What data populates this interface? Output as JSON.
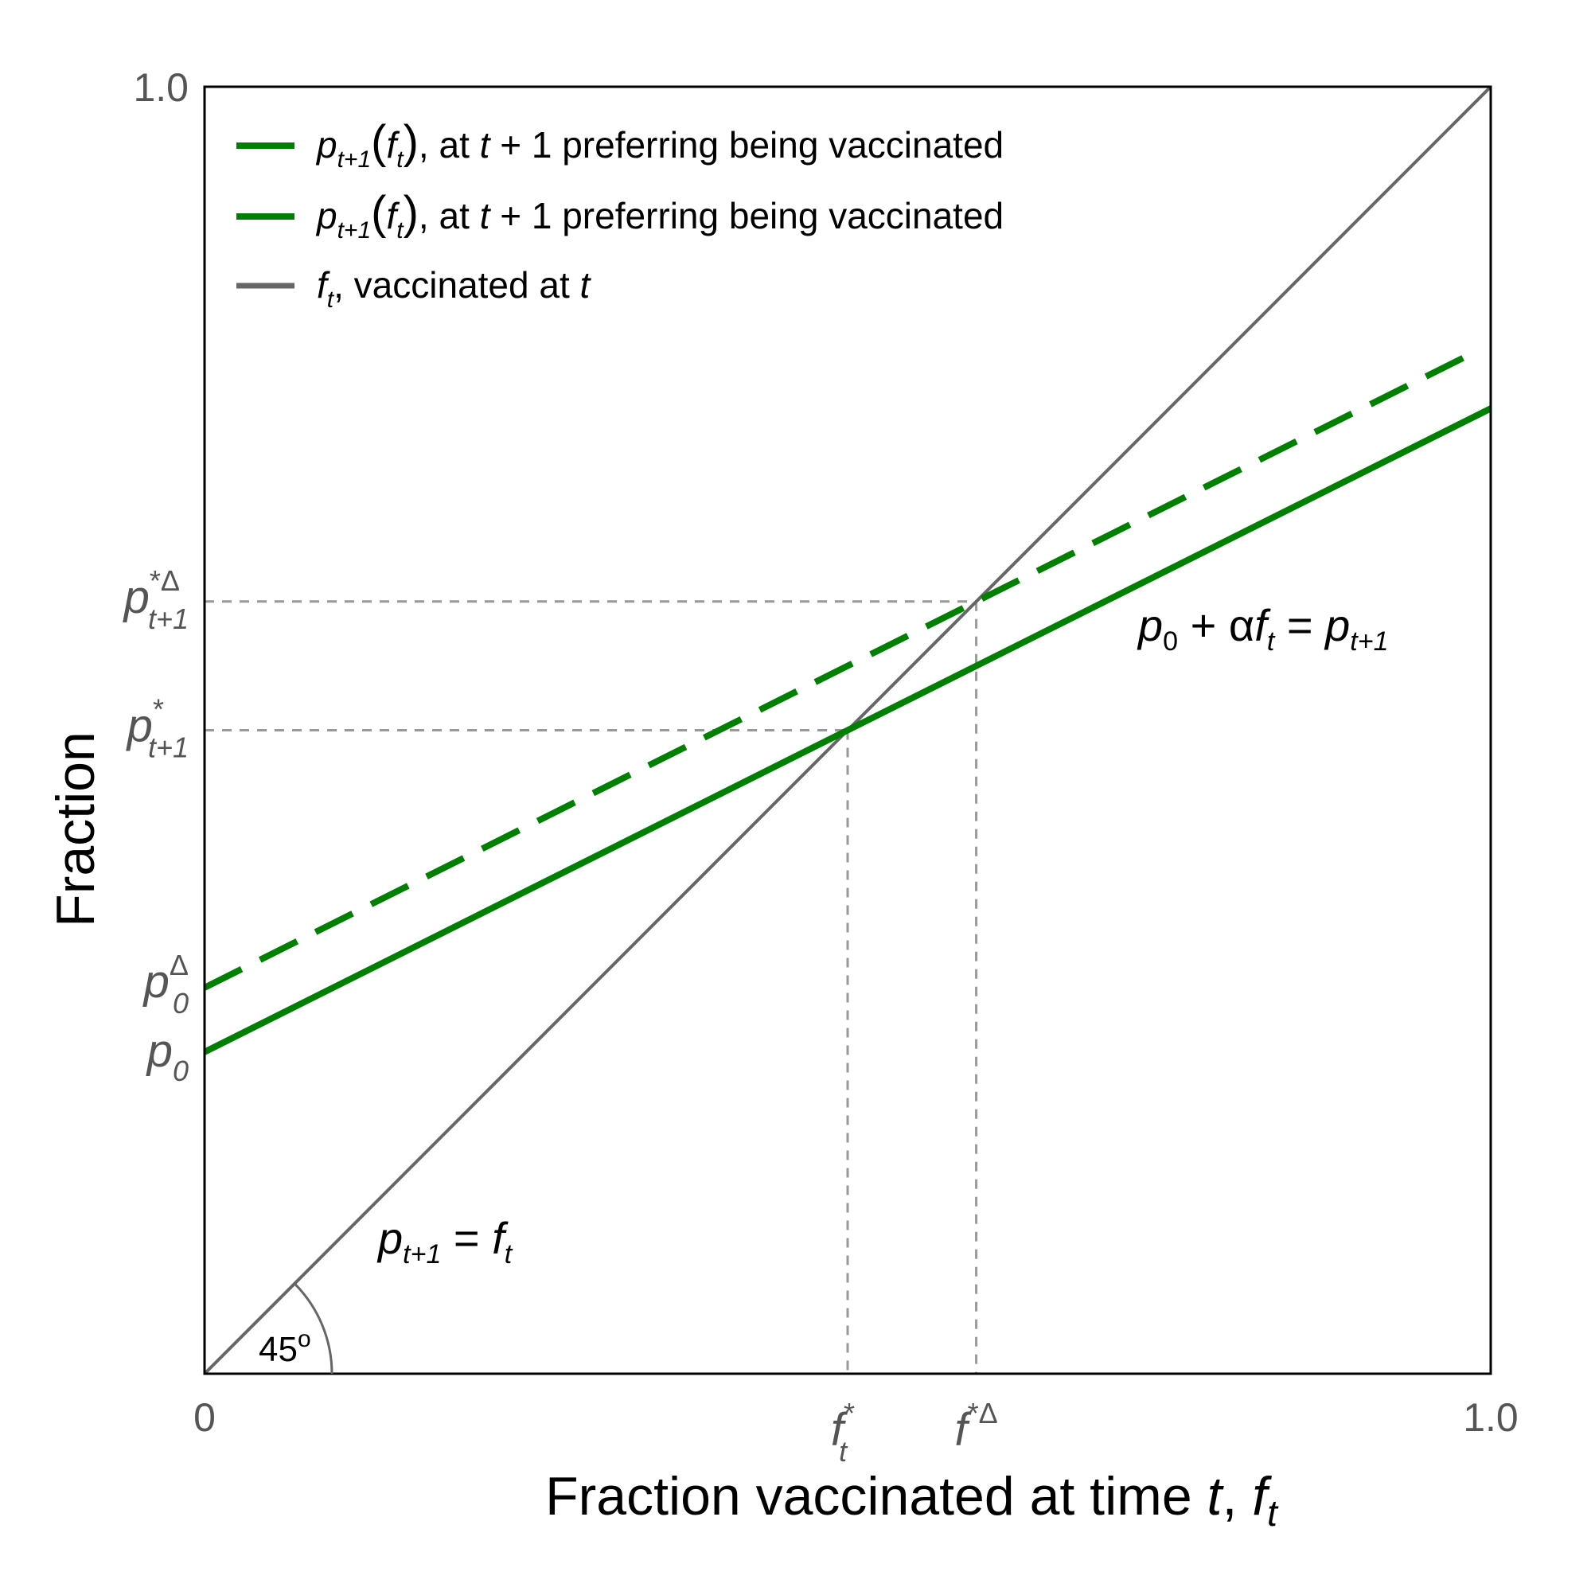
{
  "chart_data": {
    "type": "line",
    "xlabel": {
      "text": "Fraction vaccinated at time ",
      "t": "t",
      "sep": ", ",
      "f": "f",
      "sub": "t"
    },
    "ylabel": "Fraction",
    "xlim": [
      0,
      1.0
    ],
    "ylim": [
      0,
      1.0
    ],
    "x_ticks": [
      {
        "value": 0,
        "label": "0"
      },
      {
        "value": 1.0,
        "label": "1.0"
      }
    ],
    "y_ticks": [
      {
        "value": 1.0,
        "label": "1.0"
      }
    ],
    "grid": false,
    "legend_position": "top-left",
    "series": [
      {
        "name": "p_{t+1}(f_t), at t + 1 preferring being vaccinated",
        "color": "#008000",
        "style": "solid",
        "x": [
          0,
          1.0
        ],
        "y": [
          0.25,
          0.75
        ]
      },
      {
        "name": "p_{t+1}(f_t), at t + 1 preferring being vaccinated",
        "color": "#008000",
        "style": "dashed",
        "x": [
          0,
          0.98
        ],
        "y": [
          0.3,
          0.79
        ]
      },
      {
        "name": "f_t, vaccinated at t",
        "color": "#666666",
        "style": "solid",
        "x": [
          0,
          1.0
        ],
        "y": [
          0,
          1.0
        ]
      }
    ],
    "reference_points": {
      "fixed_point": {
        "x": 0.5,
        "y": 0.5
      },
      "shifted_fixed_point": {
        "x": 0.6,
        "y": 0.6
      }
    },
    "special_ticks": {
      "p0": {
        "y": 0.25,
        "base": "p",
        "sub": "0",
        "sup": ""
      },
      "p0_delta": {
        "y": 0.3,
        "base": "p",
        "sub": "0",
        "sup": "Δ"
      },
      "p_star": {
        "y": 0.5,
        "base": "p",
        "sub": "t+1",
        "sup": "*"
      },
      "p_star_delta": {
        "y": 0.6,
        "base": "p",
        "sub": "t+1",
        "sup": "*Δ"
      },
      "f_star": {
        "x": 0.5,
        "base": "f",
        "sub": "t",
        "sup": "*"
      },
      "f_star_delta": {
        "x": 0.6,
        "base": "f",
        "sub": "",
        "sup": "*Δ"
      }
    },
    "legend": [
      {
        "p": "p",
        "psub": "t+1",
        "open": "(",
        "f": "f",
        "fsub": "t",
        "close": ")",
        "pre": ", at ",
        "t": "t",
        "post": " + 1 preferring being vaccinated"
      },
      {
        "p": "p",
        "psub": "t+1",
        "open": "(",
        "f": "f",
        "fsub": "t",
        "close": ")",
        "pre": ", at ",
        "t": "t",
        "post": " + 1 preferring being vaccinated"
      },
      {
        "f": "f",
        "fsub": "t",
        "pre": ", vaccinated at ",
        "t": "t"
      }
    ],
    "annotations": {
      "line_eq": {
        "p0": "p",
        "p0sub": "0",
        "mid": " + α",
        "f": "f",
        "fsub": "t",
        "eq": " = ",
        "p": "p",
        "psub": "t+1"
      },
      "diag_eq": {
        "p": "p",
        "psub": "t+1",
        "eq": " = ",
        "f": "f",
        "fsub": "t"
      },
      "angle": {
        "value": "45",
        "sup": "o"
      }
    },
    "colors": {
      "green": "#008000",
      "gray": "#666666",
      "guide": "#999999",
      "tick_text": "#555555"
    }
  }
}
